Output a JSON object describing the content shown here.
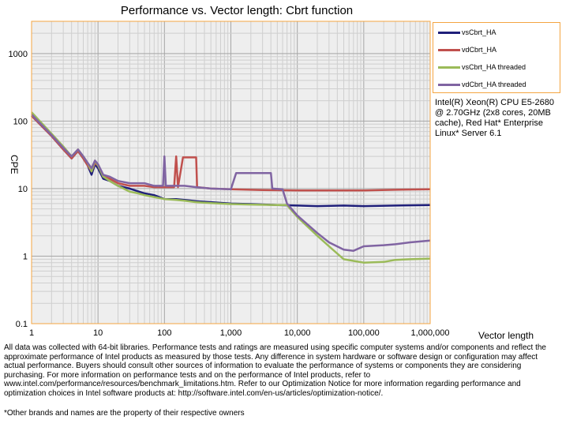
{
  "chart_data": {
    "type": "line",
    "title": "Performance vs. Vector length: Cbrt function",
    "xlabel": "Vector length",
    "ylabel": "CPE",
    "xscale": "log",
    "yscale": "log",
    "xlim": [
      1,
      1000000
    ],
    "ylim": [
      0.1,
      3000
    ],
    "x_tick_labels": [
      "1",
      "10",
      "100",
      "1,000",
      "10,000",
      "100,000",
      "1,000,000"
    ],
    "y_tick_labels": [
      "0.1",
      "1",
      "10",
      "100",
      "1000"
    ],
    "grid": true,
    "legend_position": "top-right",
    "series": [
      {
        "name": "vsCbrt_HA",
        "color": "#1f1f7a",
        "points": [
          [
            1,
            120
          ],
          [
            2,
            60
          ],
          [
            3,
            38
          ],
          [
            4,
            28
          ],
          [
            5,
            36
          ],
          [
            6,
            28
          ],
          [
            7,
            22
          ],
          [
            8,
            16
          ],
          [
            9,
            23
          ],
          [
            10,
            20
          ],
          [
            12,
            14
          ],
          [
            15,
            13
          ],
          [
            20,
            11
          ],
          [
            30,
            10
          ],
          [
            50,
            8.5
          ],
          [
            70,
            8
          ],
          [
            100,
            7
          ],
          [
            150,
            7
          ],
          [
            200,
            6.8
          ],
          [
            300,
            6.5
          ],
          [
            500,
            6.3
          ],
          [
            1000,
            6
          ],
          [
            2000,
            5.9
          ],
          [
            5000,
            5.7
          ],
          [
            10000,
            5.6
          ],
          [
            20000,
            5.5
          ],
          [
            50000,
            5.6
          ],
          [
            100000,
            5.5
          ],
          [
            300000,
            5.6
          ],
          [
            1000000,
            5.7
          ]
        ]
      },
      {
        "name": "vdCbrt_HA",
        "color": "#c0504d",
        "points": [
          [
            1,
            120
          ],
          [
            2,
            60
          ],
          [
            3,
            38
          ],
          [
            4,
            28
          ],
          [
            5,
            36
          ],
          [
            6,
            28
          ],
          [
            7,
            22
          ],
          [
            8,
            18
          ],
          [
            9,
            24
          ],
          [
            10,
            22
          ],
          [
            12,
            15
          ],
          [
            15,
            14
          ],
          [
            20,
            12
          ],
          [
            30,
            11
          ],
          [
            50,
            11
          ],
          [
            70,
            10.5
          ],
          [
            100,
            10.5
          ],
          [
            140,
            10.5
          ],
          [
            150,
            30
          ],
          [
            160,
            10.5
          ],
          [
            190,
            29
          ],
          [
            300,
            29
          ],
          [
            310,
            10.5
          ],
          [
            500,
            10
          ],
          [
            1000,
            9.8
          ],
          [
            3000,
            9.5
          ],
          [
            10000,
            9.4
          ],
          [
            30000,
            9.4
          ],
          [
            100000,
            9.4
          ],
          [
            300000,
            9.6
          ],
          [
            1000000,
            9.8
          ]
        ]
      },
      {
        "name": "vsCbrt_HA threaded",
        "color": "#9bbb59",
        "points": [
          [
            1,
            135
          ],
          [
            2,
            65
          ],
          [
            3,
            42
          ],
          [
            4,
            30
          ],
          [
            5,
            38
          ],
          [
            6,
            30
          ],
          [
            7,
            24
          ],
          [
            8,
            18
          ],
          [
            9,
            26
          ],
          [
            10,
            22
          ],
          [
            12,
            15
          ],
          [
            15,
            13
          ],
          [
            20,
            11
          ],
          [
            30,
            9
          ],
          [
            40,
            8.5
          ],
          [
            50,
            8
          ],
          [
            70,
            7.5
          ],
          [
            100,
            7
          ],
          [
            150,
            6.8
          ],
          [
            200,
            6.6
          ],
          [
            300,
            6.3
          ],
          [
            500,
            6.1
          ],
          [
            1000,
            5.9
          ],
          [
            2000,
            5.8
          ],
          [
            5000,
            5.7
          ],
          [
            7000,
            5.7
          ],
          [
            10000,
            3.8
          ],
          [
            20000,
            2
          ],
          [
            30000,
            1.4
          ],
          [
            50000,
            0.9
          ],
          [
            70000,
            0.85
          ],
          [
            100000,
            0.8
          ],
          [
            200000,
            0.82
          ],
          [
            300000,
            0.88
          ],
          [
            500000,
            0.9
          ],
          [
            1000000,
            0.92
          ]
        ]
      },
      {
        "name": "vdCbrt_HA threaded",
        "color": "#8064a2",
        "points": [
          [
            1,
            125
          ],
          [
            2,
            62
          ],
          [
            3,
            40
          ],
          [
            4,
            30
          ],
          [
            5,
            38
          ],
          [
            6,
            30
          ],
          [
            7,
            24
          ],
          [
            8,
            20
          ],
          [
            9,
            26
          ],
          [
            10,
            23
          ],
          [
            12,
            16
          ],
          [
            15,
            15
          ],
          [
            20,
            13
          ],
          [
            30,
            12
          ],
          [
            50,
            12
          ],
          [
            70,
            11
          ],
          [
            95,
            11
          ],
          [
            100,
            30
          ],
          [
            105,
            11
          ],
          [
            200,
            11
          ],
          [
            300,
            10.5
          ],
          [
            500,
            10
          ],
          [
            1000,
            9.8
          ],
          [
            1200,
            17
          ],
          [
            4000,
            17
          ],
          [
            4200,
            10
          ],
          [
            6000,
            9.8
          ],
          [
            7000,
            6
          ],
          [
            10000,
            4
          ],
          [
            20000,
            2.2
          ],
          [
            30000,
            1.6
          ],
          [
            50000,
            1.25
          ],
          [
            70000,
            1.2
          ],
          [
            100000,
            1.4
          ],
          [
            200000,
            1.45
          ],
          [
            300000,
            1.5
          ],
          [
            500000,
            1.6
          ],
          [
            1000000,
            1.7
          ]
        ]
      }
    ]
  },
  "cpu_note": "Intel(R) Xeon(R) CPU E5-2680 @ 2.70GHz (2x8 cores, 20MB cache), Red Hat* Enterprise Linux* Server 6.1",
  "footer": "All data was collected with 64-bit libraries. Performance tests and ratings are measured using specific computer systems and/or components and reflect the approximate performance of Intel products as measured by those tests. Any difference in system hardware or software design or configuration may affect actual performance. Buyers should consult other sources of information to evaluate the performance of systems or components they are considering purchasing. For more information on performance tests and on the performance of Intel products, refer to www.intel.com/performance/resources/benchmark_limitations.htm. Refer to our Optimization Notice for more information regarding performance and optimization choices in Intel software products at: http://software.intel.com/en-us/articles/optimization-notice/.",
  "footnote": "*Other brands and names are the property of their respective owners"
}
